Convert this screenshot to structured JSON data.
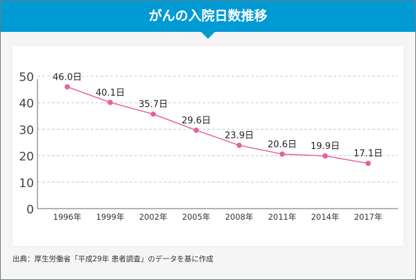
{
  "header": {
    "title": "がんの入院日数推移"
  },
  "footer": {
    "source": "出典：厚生労働省「平成29年 患者調査」のデータを基に作成"
  },
  "chart_data": {
    "type": "line",
    "title": "がんの入院日数推移",
    "categories": [
      "1996年",
      "1999年",
      "2002年",
      "2005年",
      "2008年",
      "2011年",
      "2014年",
      "2017年"
    ],
    "values": [
      46.0,
      40.1,
      35.7,
      29.6,
      23.9,
      20.6,
      19.9,
      17.1
    ],
    "data_labels": [
      "46.0日",
      "40.1日",
      "35.7日",
      "29.6日",
      "23.9日",
      "20.6日",
      "19.9日",
      "17.1日"
    ],
    "yticks": [
      "0",
      "10",
      "20",
      "30",
      "40",
      "50"
    ],
    "ylim": [
      0,
      50
    ],
    "grid": true,
    "colors": {
      "line": "#e8609f",
      "header": "#009bd5"
    }
  }
}
